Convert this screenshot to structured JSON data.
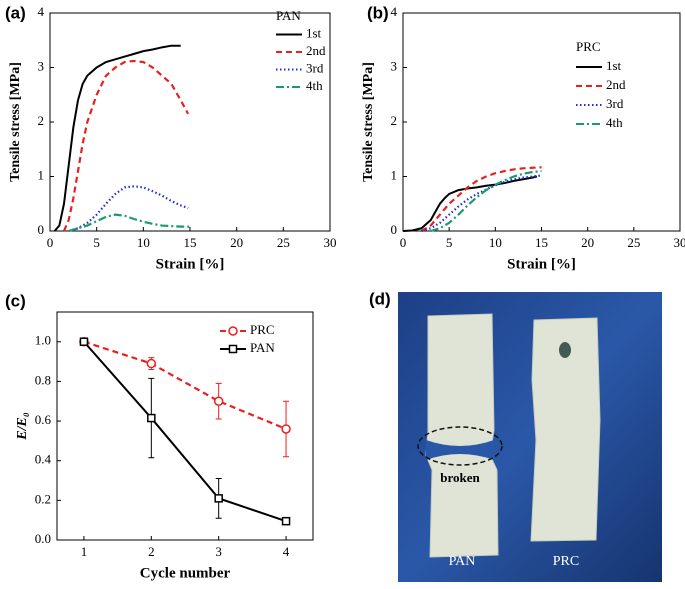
{
  "chart_data": [
    {
      "type": "line",
      "label": "(a)",
      "x_label": "Strain [%]",
      "y_label": "Tensile stress [MPa]",
      "legend_title": "PAN",
      "xlim": [
        0,
        30
      ],
      "xticks": [
        0,
        5,
        10,
        15,
        20,
        25,
        30
      ],
      "ylim": [
        0,
        4
      ],
      "yticks": [
        0,
        1,
        2,
        3,
        4
      ],
      "series": [
        {
          "name": "1st",
          "color": "#000000",
          "style": "solid",
          "x": [
            0.5,
            1,
            1.5,
            2,
            2.5,
            3,
            3.5,
            4,
            5,
            6,
            7,
            8,
            9,
            10,
            11,
            12,
            13,
            14
          ],
          "values": [
            0,
            0.1,
            0.5,
            1.2,
            1.9,
            2.4,
            2.7,
            2.85,
            3.0,
            3.1,
            3.15,
            3.2,
            3.25,
            3.3,
            3.33,
            3.37,
            3.4,
            3.4
          ]
        },
        {
          "name": "2nd",
          "color": "#e8201e",
          "style": "dashed",
          "x": [
            1.5,
            2,
            2.5,
            3,
            3.5,
            4,
            5,
            6,
            7,
            8,
            9,
            10,
            11,
            12,
            13,
            14,
            14.8
          ],
          "values": [
            0,
            0.2,
            0.6,
            1.1,
            1.6,
            2.0,
            2.5,
            2.85,
            3.0,
            3.1,
            3.12,
            3.1,
            3.0,
            2.85,
            2.7,
            2.4,
            2.15
          ]
        },
        {
          "name": "3rd",
          "color": "#1f2fd8",
          "style": "dotted",
          "x": [
            2,
            3,
            4,
            5,
            6,
            7,
            8,
            9,
            10,
            11,
            12,
            13,
            14,
            14.8
          ],
          "values": [
            0,
            0.05,
            0.15,
            0.3,
            0.5,
            0.68,
            0.8,
            0.82,
            0.8,
            0.73,
            0.65,
            0.55,
            0.47,
            0.42
          ]
        },
        {
          "name": "4th",
          "color": "#1a9a6e",
          "style": "dashdot",
          "x": [
            2,
            3,
            4,
            5,
            6,
            7,
            8,
            9,
            10,
            11,
            12,
            13,
            14,
            15
          ],
          "values": [
            0,
            0.05,
            0.1,
            0.18,
            0.26,
            0.3,
            0.28,
            0.22,
            0.17,
            0.13,
            0.1,
            0.09,
            0.08,
            0.08
          ]
        }
      ]
    },
    {
      "type": "line",
      "label": "(b)",
      "x_label": "Strain [%]",
      "y_label": "Tensile stress [MPa]",
      "legend_title": "PRC",
      "xlim": [
        0,
        30
      ],
      "xticks": [
        0,
        5,
        10,
        15,
        20,
        25,
        30
      ],
      "ylim": [
        0,
        4
      ],
      "yticks": [
        0,
        1,
        2,
        3,
        4
      ],
      "series": [
        {
          "name": "1st",
          "color": "#000000",
          "style": "solid",
          "x": [
            0,
            1,
            2,
            3,
            3.5,
            4,
            4.5,
            5,
            6,
            7,
            8,
            9,
            10,
            11,
            12,
            13,
            14,
            14.5
          ],
          "values": [
            0,
            0.01,
            0.05,
            0.2,
            0.35,
            0.5,
            0.6,
            0.68,
            0.75,
            0.78,
            0.8,
            0.83,
            0.85,
            0.88,
            0.92,
            0.95,
            0.98,
            1.0
          ]
        },
        {
          "name": "2nd",
          "color": "#e8201e",
          "style": "dashed",
          "x": [
            2,
            3,
            4,
            5,
            6,
            7,
            8,
            9,
            10,
            11,
            12,
            13,
            14,
            15
          ],
          "values": [
            0,
            0.1,
            0.3,
            0.5,
            0.65,
            0.8,
            0.92,
            1.0,
            1.06,
            1.1,
            1.13,
            1.15,
            1.16,
            1.17
          ]
        },
        {
          "name": "3rd",
          "color": "#1f2fd8",
          "style": "dotted",
          "x": [
            2,
            3,
            4,
            5,
            6,
            7,
            8,
            9,
            10,
            11,
            12,
            13,
            14,
            15
          ],
          "values": [
            0,
            0.05,
            0.15,
            0.3,
            0.45,
            0.58,
            0.68,
            0.76,
            0.84,
            0.9,
            0.95,
            0.98,
            1.0,
            1.02
          ]
        },
        {
          "name": "4th",
          "color": "#1a9a6e",
          "style": "dashdot",
          "x": [
            3,
            4,
            5,
            6,
            7,
            8,
            9,
            10,
            11,
            12,
            13,
            14,
            15
          ],
          "values": [
            0,
            0.05,
            0.15,
            0.3,
            0.47,
            0.62,
            0.75,
            0.85,
            0.93,
            1.0,
            1.05,
            1.08,
            1.1
          ]
        }
      ]
    },
    {
      "type": "errorline",
      "label": "(c)",
      "x_label": "Cycle number",
      "y_label": "E/E₀",
      "xlim": [
        0.6,
        4.4
      ],
      "xticks": [
        1,
        2,
        3,
        4
      ],
      "ylim": [
        0,
        1.15
      ],
      "yticks": [
        {
          "value": 0,
          "label": "0.0"
        },
        {
          "value": 0.2,
          "label": "0.2"
        },
        {
          "value": 0.4,
          "label": "0.4"
        },
        {
          "value": 0.6,
          "label": "0.6"
        },
        {
          "value": 0.8,
          "label": "0.8"
        },
        {
          "value": 1,
          "label": "1.0"
        }
      ],
      "series": [
        {
          "name": "PRC",
          "color": "#e8201e",
          "style": "dashed",
          "marker": "circle",
          "x": [
            1,
            2,
            3,
            4
          ],
          "values": [
            1.0,
            0.89,
            0.7,
            0.56
          ],
          "errors": [
            0,
            0.03,
            0.09,
            0.14
          ]
        },
        {
          "name": "PAN",
          "color": "#000000",
          "style": "solid",
          "marker": "square",
          "x": [
            1,
            2,
            3,
            4
          ],
          "values": [
            1.0,
            0.615,
            0.21,
            0.095
          ],
          "errors": [
            0,
            0.2,
            0.1,
            0.01
          ]
        }
      ]
    }
  ],
  "photo": {
    "label": "(d)",
    "annotation": "broken",
    "samples": [
      "PAN",
      "PRC"
    ]
  }
}
